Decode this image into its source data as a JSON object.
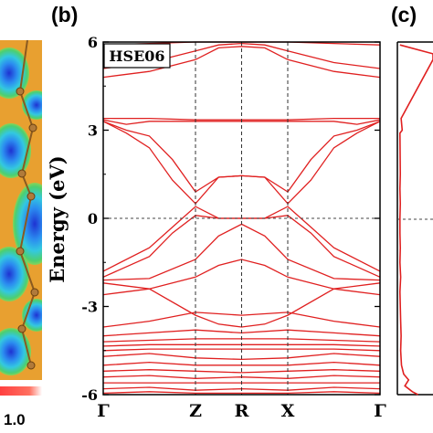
{
  "panels": {
    "a": {
      "colorbar_max_label": "1.0"
    },
    "b": {
      "letter": "(b)"
    },
    "c": {
      "letter": "(c)"
    }
  },
  "chart_data": {
    "type": "line",
    "title": "",
    "annotation": "HSE06",
    "ylabel": "Energy (eV)",
    "xlabel": "",
    "x_tick_labels": [
      "Γ",
      "Z",
      "R",
      "X",
      "Γ"
    ],
    "x_ticks": [
      0,
      1,
      1.5,
      2,
      3
    ],
    "xlim": [
      0,
      3
    ],
    "y_ticks": [
      -6,
      -3,
      0,
      3,
      6
    ],
    "ylim": [
      -6,
      6
    ],
    "fermi_level": 0,
    "colors": {
      "bands": "#e02020",
      "dos": "#e02020",
      "axes": "#000000"
    },
    "series": [
      {
        "x": [
          0,
          0.5,
          1,
          1.25,
          1.5,
          1.75,
          2,
          2.5,
          3
        ],
        "y": [
          4.8,
          5.0,
          5.4,
          5.8,
          5.85,
          5.8,
          5.4,
          5.0,
          4.8
        ]
      },
      {
        "x": [
          0,
          0.5,
          1,
          1.25,
          1.5,
          1.75,
          2,
          2.5,
          3
        ],
        "y": [
          5.1,
          5.3,
          5.7,
          5.9,
          5.95,
          5.9,
          5.7,
          5.3,
          5.1
        ]
      },
      {
        "x": [
          0,
          0.5,
          1,
          1.25,
          1.5,
          1.75,
          2,
          2.5,
          3
        ],
        "y": [
          5.9,
          5.95,
          6.0,
          6.0,
          6.0,
          6.0,
          6.0,
          5.95,
          5.9
        ]
      },
      {
        "x": [
          0,
          0.5,
          1,
          1.5,
          2,
          2.5,
          3
        ],
        "y": [
          3.4,
          3.4,
          3.35,
          3.35,
          3.35,
          3.4,
          3.4
        ]
      },
      {
        "x": [
          0,
          0.25,
          0.5,
          1,
          1.5,
          2,
          2.5,
          2.75,
          3
        ],
        "y": [
          3.35,
          3.2,
          3.3,
          3.3,
          3.3,
          3.3,
          3.3,
          3.2,
          3.35
        ]
      },
      {
        "x": [
          0,
          0.25,
          0.5,
          0.75,
          1,
          1.25,
          1.5,
          1.75,
          2,
          2.25,
          2.5,
          2.75,
          3
        ],
        "y": [
          3.3,
          2.9,
          2.4,
          1.3,
          0.5,
          1.4,
          1.45,
          1.4,
          0.5,
          1.3,
          2.4,
          2.9,
          3.3
        ]
      },
      {
        "x": [
          0,
          0.25,
          0.5,
          0.75,
          1,
          1.25,
          1.5,
          1.75,
          2,
          2.25,
          2.5,
          2.75,
          3
        ],
        "y": [
          3.3,
          3.0,
          2.8,
          2.0,
          0.9,
          1.4,
          1.45,
          1.4,
          0.9,
          2.0,
          2.8,
          3.0,
          3.3
        ]
      },
      {
        "x": [
          0,
          0.5,
          0.75,
          1,
          1.25,
          1.5,
          1.75,
          2,
          2.25,
          2.5,
          3
        ],
        "y": [
          -1.8,
          -1.0,
          -0.3,
          0.4,
          0.0,
          0.0,
          0.0,
          0.4,
          -0.3,
          -1.0,
          -1.8
        ]
      },
      {
        "x": [
          0,
          0.5,
          0.75,
          1,
          1.25,
          1.5,
          1.75,
          2,
          2.25,
          2.5,
          3
        ],
        "y": [
          -2.0,
          -1.3,
          -0.5,
          0.1,
          0.0,
          0.0,
          0.0,
          0.1,
          -0.5,
          -1.3,
          -2.0
        ]
      },
      {
        "x": [
          0,
          0.5,
          1,
          1.25,
          1.5,
          1.75,
          2,
          2.5,
          3
        ],
        "y": [
          -2.1,
          -2.05,
          -1.4,
          -0.6,
          -0.2,
          -0.6,
          -1.4,
          -2.05,
          -2.1
        ]
      },
      {
        "x": [
          0,
          0.5,
          1,
          1.25,
          1.5,
          1.75,
          2,
          2.5,
          3
        ],
        "y": [
          -2.2,
          -2.4,
          -2.0,
          -1.6,
          -1.4,
          -1.6,
          -2.0,
          -2.4,
          -2.2
        ]
      },
      {
        "x": [
          0,
          0.5,
          1,
          1.25,
          1.5,
          1.75,
          2,
          2.5,
          3
        ],
        "y": [
          -2.6,
          -2.4,
          -3.3,
          -3.6,
          -3.7,
          -3.6,
          -3.3,
          -2.4,
          -2.6
        ]
      },
      {
        "x": [
          0,
          0.5,
          1,
          1.5,
          2,
          2.5,
          3
        ],
        "y": [
          -3.7,
          -3.5,
          -3.2,
          -3.3,
          -3.2,
          -3.5,
          -3.7
        ]
      },
      {
        "x": [
          0,
          0.5,
          1,
          1.5,
          2,
          2.5,
          3
        ],
        "y": [
          -4.0,
          -3.9,
          -3.8,
          -3.9,
          -3.8,
          -3.9,
          -4.0
        ]
      },
      {
        "x": [
          0,
          0.5,
          1,
          1.5,
          2,
          2.5,
          3
        ],
        "y": [
          -4.2,
          -4.15,
          -4.1,
          -4.1,
          -4.1,
          -4.15,
          -4.2
        ]
      },
      {
        "x": [
          0,
          0.5,
          1,
          1.5,
          2,
          2.5,
          3
        ],
        "y": [
          -4.35,
          -4.3,
          -4.3,
          -4.3,
          -4.3,
          -4.3,
          -4.35
        ]
      },
      {
        "x": [
          0,
          0.5,
          1,
          1.5,
          2,
          2.5,
          3
        ],
        "y": [
          -4.5,
          -4.45,
          -4.45,
          -4.45,
          -4.45,
          -4.45,
          -4.5
        ]
      },
      {
        "x": [
          0,
          0.5,
          1,
          1.5,
          2,
          2.5,
          3
        ],
        "y": [
          -4.7,
          -4.6,
          -4.75,
          -4.8,
          -4.75,
          -4.6,
          -4.7
        ]
      },
      {
        "x": [
          0,
          0.5,
          1,
          1.5,
          2,
          2.5,
          3
        ],
        "y": [
          -5.0,
          -4.9,
          -5.0,
          -5.0,
          -5.0,
          -4.9,
          -5.0
        ]
      },
      {
        "x": [
          0,
          0.5,
          1,
          1.5,
          2,
          2.5,
          3
        ],
        "y": [
          -5.2,
          -5.15,
          -5.2,
          -5.25,
          -5.2,
          -5.15,
          -5.2
        ]
      },
      {
        "x": [
          0,
          0.5,
          1,
          1.5,
          2,
          2.5,
          3
        ],
        "y": [
          -5.4,
          -5.35,
          -5.45,
          -5.4,
          -5.45,
          -5.35,
          -5.4
        ]
      },
      {
        "x": [
          0,
          0.5,
          1,
          1.5,
          2,
          2.5,
          3
        ],
        "y": [
          -5.6,
          -5.6,
          -5.6,
          -5.6,
          -5.6,
          -5.6,
          -5.6
        ]
      },
      {
        "x": [
          0,
          0.5,
          1,
          1.5,
          2,
          2.5,
          3
        ],
        "y": [
          -5.8,
          -5.75,
          -5.85,
          -5.8,
          -5.85,
          -5.75,
          -5.8
        ]
      },
      {
        "x": [
          0,
          0.5,
          1,
          1.5,
          2,
          2.5,
          3
        ],
        "y": [
          -5.95,
          -5.9,
          -5.95,
          -5.95,
          -5.95,
          -5.9,
          -5.95
        ]
      }
    ],
    "dos": {
      "energy": [
        5.9,
        5.6,
        5.4,
        3.4,
        3.0,
        2.9,
        1.5,
        1.0,
        0.5,
        0,
        -0.5,
        -1.0,
        -1.5,
        -2.0,
        -2.5,
        -3.0,
        -3.5,
        -4.0,
        -4.5,
        -5.0,
        -5.3,
        -5.5,
        -5.7,
        -5.9,
        -6.0
      ],
      "values": [
        0.02,
        0.9,
        0.9,
        0.05,
        0.08,
        0.02,
        0.03,
        0.02,
        0.03,
        0.02,
        0.02,
        0.03,
        0.02,
        0.04,
        0.02,
        0.03,
        0.04,
        0.05,
        0.04,
        0.06,
        0.12,
        0.25,
        0.15,
        0.35,
        0.5
      ]
    }
  }
}
